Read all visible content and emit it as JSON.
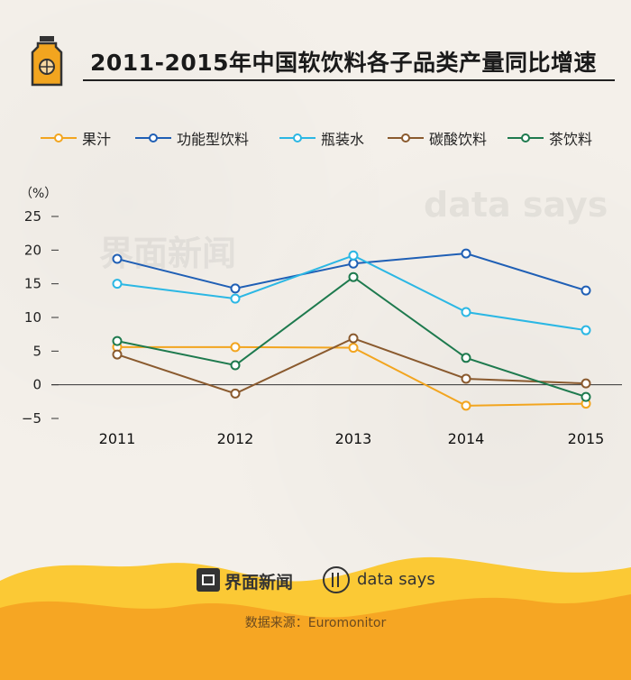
{
  "title": "2011-2015年中国软饮料各子品类产量同比增速",
  "watermarks": {
    "jiemian": "界面新闻",
    "datasays": "data says"
  },
  "footer": {
    "jiemian_text": "界面新闻",
    "datasays_text": "data says",
    "source": "数据来源：Euromonitor"
  },
  "colors": {
    "background": "#f4f0ea",
    "wave_orange": "#f6a623",
    "wave_yellow": "#fbc935"
  },
  "chart_data": {
    "type": "line",
    "ylabel": "（%）",
    "x": [
      "2011",
      "2012",
      "2013",
      "2014",
      "2015"
    ],
    "ylim": [
      -5,
      25
    ],
    "yticks": [
      -5,
      0,
      5,
      10,
      15,
      20,
      25
    ],
    "ytick_labels": [
      "−5",
      "0",
      "5",
      "10",
      "15",
      "20",
      "25"
    ],
    "legend_position": "top",
    "series": [
      {
        "name": "果汁",
        "color": "#f2a51f",
        "values": [
          5.6,
          5.6,
          5.5,
          -3.1,
          -2.8
        ]
      },
      {
        "name": "功能型饮料",
        "color": "#1f5fb5",
        "values": [
          18.7,
          14.3,
          18.0,
          19.5,
          14.0
        ]
      },
      {
        "name": "瓶装水",
        "color": "#2bb7e4",
        "values": [
          15.0,
          12.8,
          19.2,
          10.8,
          8.1
        ]
      },
      {
        "name": "碳酸饮料",
        "color": "#8a5a2e",
        "values": [
          4.5,
          -1.3,
          6.9,
          0.9,
          0.2
        ]
      },
      {
        "name": "茶饮料",
        "color": "#1e7a4e",
        "values": [
          6.5,
          2.9,
          16.0,
          4.0,
          -1.8
        ]
      }
    ]
  }
}
